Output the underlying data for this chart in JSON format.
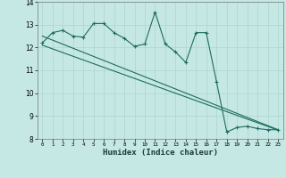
{
  "xlabel": "Humidex (Indice chaleur)",
  "bg_color": "#c5e8e5",
  "grid_color": "#aed4d0",
  "line_color": "#1e6b5e",
  "x_values": [
    0,
    1,
    2,
    3,
    4,
    5,
    6,
    7,
    8,
    9,
    10,
    11,
    12,
    13,
    14,
    15,
    16,
    17,
    18,
    19,
    20,
    21,
    22,
    23
  ],
  "line1": [
    12.2,
    12.65,
    12.75,
    12.5,
    12.45,
    13.05,
    13.05,
    12.65,
    12.4,
    12.05,
    12.15,
    13.55,
    12.15,
    11.8,
    11.35,
    12.65,
    12.65,
    10.5,
    8.3,
    8.5,
    8.55,
    8.45,
    8.4,
    8.4
  ],
  "trend1": [
    12.5,
    8.4
  ],
  "trend2": [
    12.1,
    8.38
  ],
  "ylim": [
    8,
    14
  ],
  "xlim": [
    -0.5,
    23.5
  ],
  "yticks": [
    8,
    9,
    10,
    11,
    12,
    13,
    14
  ]
}
